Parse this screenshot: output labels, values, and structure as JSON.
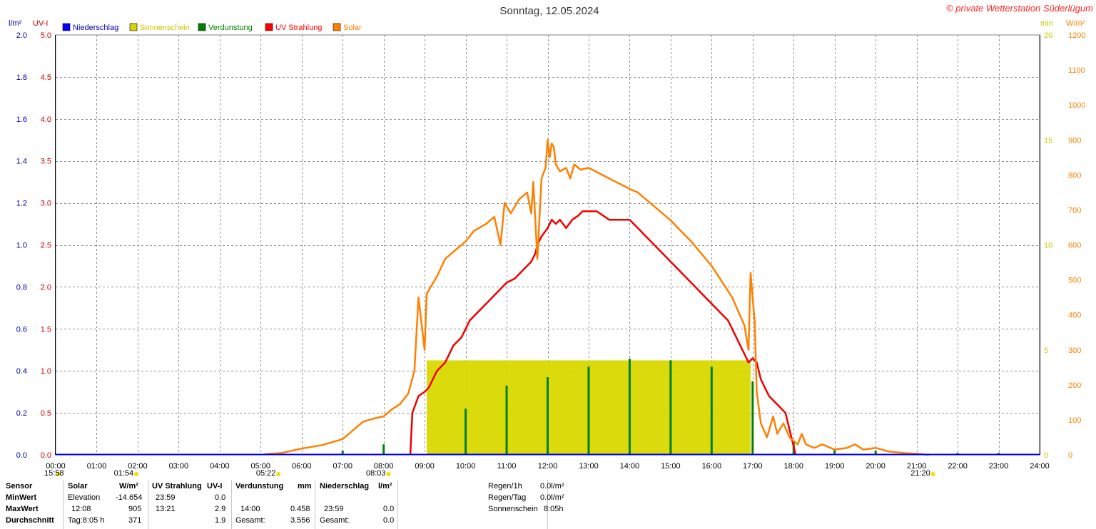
{
  "chart_data": {
    "type": "line",
    "title": "Sonntag, 12.05.2024",
    "watermark": "© private Wetterstation Süderlügum",
    "legend": [
      {
        "name": "Niederschlag",
        "color": "#0000ff"
      },
      {
        "name": "Sonnenschein",
        "color": "#d4d400"
      },
      {
        "name": "Verdunstung",
        "color": "#008000"
      },
      {
        "name": "UV Strahlung",
        "color": "#ff0000"
      },
      {
        "name": "Solar",
        "color": "#ff8000"
      }
    ],
    "x_ticks": [
      "00:00",
      "01:00",
      "02:00",
      "03:00",
      "04:00",
      "05:00",
      "06:00",
      "07:00",
      "08:00",
      "09:00",
      "10:00",
      "11:00",
      "12:00",
      "13:00",
      "14:00",
      "15:00",
      "16:00",
      "17:00",
      "18:00",
      "19:00",
      "20:00",
      "21:00",
      "22:00",
      "23:00",
      "24:00"
    ],
    "axes": {
      "precip": {
        "label": "l/m²",
        "color": "#0000aa",
        "range": [
          0.0,
          2.0
        ],
        "ticks": [
          "0.0",
          "0.2",
          "0.4",
          "0.6",
          "0.8",
          "1.0",
          "1.2",
          "1.4",
          "1.6",
          "1.8",
          "2.0"
        ]
      },
      "uv": {
        "label": "UV-I",
        "color": "#cc0000",
        "range": [
          0.0,
          5.0
        ],
        "ticks": [
          "0.0",
          "0.5",
          "1.0",
          "1.5",
          "2.0",
          "2.5",
          "3.0",
          "3.5",
          "4.0",
          "4.5",
          "5.0"
        ]
      },
      "sun_min": {
        "label": "min",
        "color": "#c8c800",
        "range": [
          0,
          20
        ],
        "ticks": [
          "0",
          "5",
          "10",
          "15",
          "20"
        ]
      },
      "solar": {
        "label": "W/m²",
        "color": "#ff8000",
        "range": [
          0,
          1200
        ],
        "ticks": [
          "0",
          "100",
          "200",
          "300",
          "400",
          "500",
          "600",
          "700",
          "800",
          "900",
          "1000",
          "1100",
          "1200"
        ]
      }
    },
    "markers": [
      {
        "label": "15:58",
        "hour": 0
      },
      {
        "label": "01:54",
        "hour": 1.9
      },
      {
        "label": "05:22",
        "hour": 5.367
      },
      {
        "label": "08:03",
        "hour": 8.05
      },
      {
        "label": "21:20",
        "hour": 21.333
      }
    ],
    "solar_series": {
      "name": "Solar",
      "hours": [
        5.1,
        5.5,
        6.0,
        6.5,
        7.0,
        7.3,
        7.5,
        7.8,
        8.0,
        8.2,
        8.4,
        8.6,
        8.75,
        8.85,
        8.93,
        9.0,
        9.05,
        9.15,
        9.3,
        9.5,
        9.7,
        10.0,
        10.2,
        10.5,
        10.7,
        10.85,
        10.95,
        11.1,
        11.3,
        11.5,
        11.6,
        11.65,
        11.75,
        11.85,
        11.95,
        12.0,
        12.05,
        12.1,
        12.15,
        12.2,
        12.3,
        12.45,
        12.55,
        12.65,
        12.8,
        13.0,
        13.5,
        14.0,
        14.2,
        14.5,
        15.0,
        15.5,
        16.0,
        16.5,
        16.8,
        16.9,
        16.95,
        17.05,
        17.1,
        17.2,
        17.35,
        17.5,
        17.6,
        17.75,
        17.9,
        18.0,
        18.1,
        18.2,
        18.3,
        18.5,
        18.7,
        19.0,
        19.3,
        19.5,
        19.7,
        20.0,
        20.3,
        20.7,
        21.0,
        21.3
      ],
      "values": [
        2,
        5,
        18,
        28,
        45,
        75,
        95,
        105,
        110,
        130,
        145,
        175,
        240,
        450,
        370,
        300,
        460,
        480,
        510,
        560,
        580,
        610,
        640,
        660,
        680,
        600,
        720,
        690,
        730,
        750,
        690,
        780,
        560,
        790,
        820,
        900,
        850,
        890,
        880,
        830,
        810,
        820,
        790,
        830,
        815,
        820,
        790,
        760,
        750,
        720,
        670,
        610,
        540,
        450,
        370,
        300,
        520,
        380,
        180,
        90,
        50,
        110,
        60,
        90,
        50,
        40,
        30,
        60,
        30,
        20,
        30,
        15,
        20,
        30,
        15,
        20,
        10,
        5,
        3,
        0
      ]
    },
    "uv_series": {
      "name": "UV Strahlung",
      "hours": [
        8.65,
        8.7,
        8.85,
        9.0,
        9.1,
        9.2,
        9.3,
        9.5,
        9.7,
        9.9,
        10.0,
        10.1,
        10.3,
        10.5,
        10.7,
        10.9,
        11.0,
        11.2,
        11.4,
        11.6,
        11.7,
        11.75,
        11.85,
        12.0,
        12.1,
        12.2,
        12.3,
        12.45,
        12.6,
        12.75,
        12.85,
        13.0,
        13.2,
        13.5,
        14.0,
        14.2,
        14.4,
        14.6,
        14.8,
        15.0,
        15.2,
        15.4,
        15.6,
        15.8,
        16.0,
        16.2,
        16.4,
        16.5,
        16.6,
        16.7,
        16.8,
        16.9,
        17.0,
        17.1,
        17.2,
        17.3,
        17.4,
        17.6,
        17.8,
        17.9,
        18.0,
        18.05
      ],
      "values": [
        0.0,
        0.5,
        0.7,
        0.75,
        0.8,
        0.9,
        1.0,
        1.1,
        1.3,
        1.4,
        1.5,
        1.6,
        1.7,
        1.8,
        1.9,
        2.0,
        2.05,
        2.1,
        2.2,
        2.3,
        2.4,
        2.5,
        2.6,
        2.7,
        2.8,
        2.75,
        2.8,
        2.7,
        2.8,
        2.85,
        2.9,
        2.9,
        2.9,
        2.8,
        2.8,
        2.7,
        2.6,
        2.5,
        2.4,
        2.3,
        2.2,
        2.1,
        2.0,
        1.9,
        1.8,
        1.7,
        1.6,
        1.5,
        1.4,
        1.3,
        1.2,
        1.1,
        1.15,
        1.1,
        0.9,
        0.8,
        0.7,
        0.6,
        0.5,
        0.3,
        0.1,
        0.0
      ]
    },
    "sunshine_block": {
      "name": "Sonnenschein",
      "start_hour": 9.05,
      "end_hour": 16.95,
      "minutes": 4.5
    },
    "evaporation_spikes": {
      "name": "Verdunstung",
      "hours": [
        7.0,
        8.0,
        10.0,
        11.0,
        12.0,
        13.0,
        14.0,
        15.0,
        16.0,
        17.0,
        18.0,
        19.0,
        20.0,
        21.0,
        22.0,
        23.0
      ],
      "values": [
        0.02,
        0.05,
        0.22,
        0.33,
        0.37,
        0.42,
        0.458,
        0.45,
        0.42,
        0.35,
        0.06,
        0.03,
        0.02,
        0.01,
        0.01,
        0.01
      ]
    }
  },
  "stats": {
    "header_sensor": "Sensor",
    "header_solar": "Solar",
    "header_solar_unit": "W/m²",
    "header_uv": "UV Strahlung",
    "header_uv_unit": "UV-I",
    "header_evap": "Verdunstung",
    "header_evap_unit": "mm",
    "header_precip": "Niederschlag",
    "header_precip_unit": "l/m²",
    "row_min": "MinWert",
    "row_max": "MaxWert",
    "row_avg": "Durchschnitt",
    "solar_min_label": "Elevation",
    "solar_min_value": "-14.654",
    "solar_max_time": "12:08",
    "solar_max_value": "905",
    "solar_avg_label": "Tag:8:05 h",
    "solar_avg_value": "371",
    "uv_min_time": "23:59",
    "uv_min_value": "0.0",
    "uv_max_time": "13:21",
    "uv_max_value": "2.9",
    "uv_avg_value": "1.9",
    "evap_max_time": "14:00",
    "evap_max_value": "0.458",
    "evap_total_label": "Gesamt:",
    "evap_total_value": "3.556",
    "precip_max_time": "23:59",
    "precip_max_value": "0.0",
    "precip_total_label": "Gesamt:",
    "precip_total_value": "0.0",
    "rain_1h_label": "Regen/1h",
    "rain_1h_value": "0.0l/m²",
    "rain_day_label": "Regen/Tag",
    "rain_day_value": "0.0l/m²",
    "sunshine_label": "Sonnenschein",
    "sunshine_value": "8:05h"
  }
}
